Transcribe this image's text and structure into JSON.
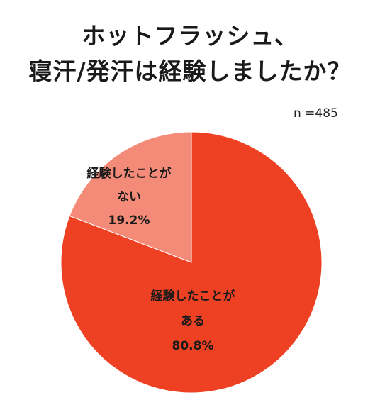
{
  "title_line1": "ホットフラッシュ、",
  "title_line2": "寝汗/発汗は経験しましたか？",
  "sample_note": "n =485",
  "colors": {
    "yes": "#ee4123",
    "no": "#f38b78"
  },
  "chart_data": {
    "type": "pie",
    "title": "ホットフラッシュ、寝汗/発汗は経験しましたか？",
    "n_label": "n =485",
    "slices": [
      {
        "label_line1": "経験したことが",
        "label_line2": "ある",
        "value": 80.8,
        "value_label": "80.8%"
      },
      {
        "label_line1": "経験したことが",
        "label_line2": "ない",
        "value": 19.2,
        "value_label": "19.2%"
      }
    ]
  }
}
